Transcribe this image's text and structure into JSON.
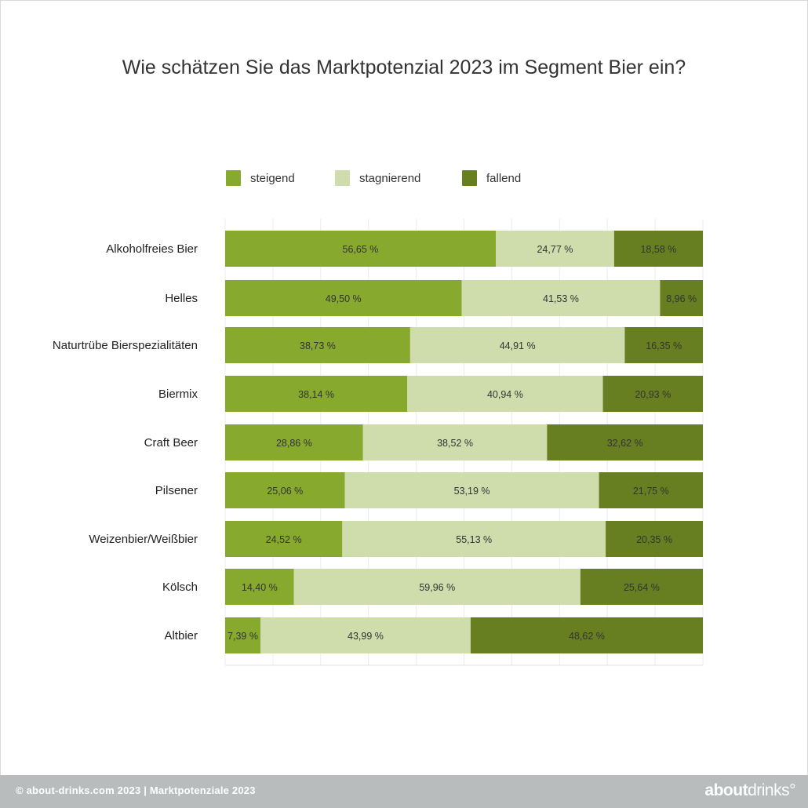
{
  "title": "Wie schätzen Sie das Marktpotenzial 2023 im Segment Bier ein?",
  "footer": {
    "text": "© about-drinks.com 2023  |  Marktpotenziale 2023",
    "brand_bold": "about",
    "brand_regular": "drinks",
    "brand_mark": "°"
  },
  "colors": {
    "steigend": "#86a92e",
    "stagnierend": "#cfddac",
    "fallend": "#677f20"
  },
  "chart_data": {
    "type": "bar",
    "orientation": "horizontal",
    "stacked": "percent",
    "title": "Wie schätzen Sie das Marktpotenzial 2023 im Segment Bier ein?",
    "legend_position": "top",
    "grid": true,
    "xlim": [
      0,
      100
    ],
    "categories": [
      "Alkoholfreies Bier",
      "Helles",
      "Naturtrübe Bierspezialitäten",
      "Biermix",
      "Craft Beer",
      "Pilsener",
      "Weizenbier/Weißbier",
      "Kölsch",
      "Altbier"
    ],
    "series": [
      {
        "name": "steigend",
        "color": "#86a92e",
        "values": [
          56.65,
          49.5,
          38.73,
          38.14,
          28.86,
          25.06,
          24.52,
          14.4,
          7.39
        ],
        "labels": [
          "56,65 %",
          "49,50 %",
          "38,73 %",
          "38,14 %",
          "28,86 %",
          "25,06 %",
          "24,52 %",
          "14,40 %",
          "7,39 %"
        ]
      },
      {
        "name": "stagnierend",
        "color": "#cfddac",
        "values": [
          24.77,
          41.53,
          44.91,
          40.94,
          38.52,
          53.19,
          55.13,
          59.96,
          43.99
        ],
        "labels": [
          "24,77 %",
          "41,53 %",
          "44,91 %",
          "40,94 %",
          "38,52 %",
          "53,19 %",
          "55,13 %",
          "59,96 %",
          "43,99 %"
        ]
      },
      {
        "name": "fallend",
        "color": "#677f20",
        "values": [
          18.58,
          8.96,
          16.35,
          20.93,
          32.62,
          21.75,
          20.35,
          25.64,
          48.62
        ],
        "labels": [
          "18,58 %",
          "8,96 %",
          "16,35 %",
          "20,93  %",
          "32,62 %",
          "21,75 %",
          "20,35 %",
          "25,64 %",
          "48,62 %"
        ]
      }
    ]
  }
}
